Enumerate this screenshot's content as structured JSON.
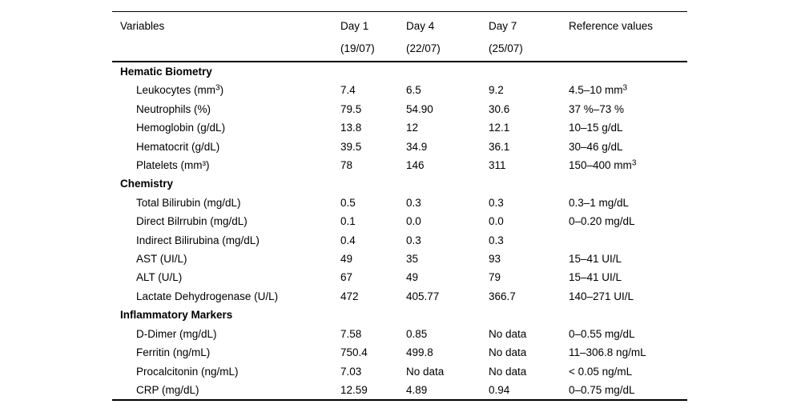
{
  "page": {
    "background": "#ffffff",
    "text_color": "#000000",
    "rule_color": "#000000"
  },
  "table": {
    "columns": [
      {
        "label": "Variables",
        "sub": ""
      },
      {
        "label": "Day 1",
        "sub": "(19/07)"
      },
      {
        "label": "Day 4",
        "sub": "(22/07)"
      },
      {
        "label": "Day 7",
        "sub": "(25/07)"
      },
      {
        "label": "Reference values",
        "sub": ""
      }
    ],
    "sections": [
      {
        "title": "Hematic Biometry",
        "rows": [
          {
            "variable": "Leukocytes (mm^3)",
            "day1": "7.4",
            "day4": "6.5",
            "day7": "9.2",
            "reference": "4.5–10 mm^3"
          },
          {
            "variable": "Neutrophils (%)",
            "day1": "79.5",
            "day4": "54.90",
            "day7": "30.6",
            "reference": "37 %–73 %"
          },
          {
            "variable": "Hemoglobin (g/dL)",
            "day1": "13.8",
            "day4": "12",
            "day7": "12.1",
            "reference": "10–15 g/dL"
          },
          {
            "variable": "Hematocrit (g/dL)",
            "day1": "39.5",
            "day4": "34.9",
            "day7": "36.1",
            "reference": "30–46 g/dL"
          },
          {
            "variable": "Platelets (mm³)",
            "day1": "78",
            "day4": "146",
            "day7": "311",
            "reference": "150–400 mm^3"
          }
        ]
      },
      {
        "title": "Chemistry",
        "rows": [
          {
            "variable": "Total Bilirubin (mg/dL)",
            "day1": "0.5",
            "day4": "0.3",
            "day7": "0.3",
            "reference": "0.3–1 mg/dL"
          },
          {
            "variable": "Direct Bilrrubin (mg/dL)",
            "day1": "0.1",
            "day4": "0.0",
            "day7": "0.0",
            "reference": "0–0.20 mg/dL"
          },
          {
            "variable": "Indirect Bilirubina (mg/dL)",
            "day1": "0.4",
            "day4": "0.3",
            "day7": "0.3",
            "reference": ""
          },
          {
            "variable": "AST (UI/L)",
            "day1": "49",
            "day4": "35",
            "day7": "93",
            "reference": "15–41 UI/L"
          },
          {
            "variable": "ALT (U/L)",
            "day1": "67",
            "day4": "49",
            "day7": "79",
            "reference": "15–41 UI/L"
          },
          {
            "variable": "Lactate Dehydrogenase (U/L)",
            "day1": "472",
            "day4": "405.77",
            "day7": "366.7",
            "reference": "140–271 UI/L"
          }
        ]
      },
      {
        "title": "Inflammatory Markers",
        "rows": [
          {
            "variable": "D-Dimer (mg/dL)",
            "day1": "7.58",
            "day4": "0.85",
            "day7": "No data",
            "reference": "0–0.55 mg/dL"
          },
          {
            "variable": "Ferritin (ng/mL)",
            "day1": "750.4",
            "day4": "499.8",
            "day7": "No data",
            "reference": "11–306.8 ng/mL"
          },
          {
            "variable": "Procalcitonin (ng/mL)",
            "day1": "7.03",
            "day4": "No data",
            "day7": "No data",
            "reference": "< 0.05 ng/mL"
          },
          {
            "variable": "CRP (mg/dL)",
            "day1": "12.59",
            "day4": "4.89",
            "day7": "0.94",
            "reference": "0–0.75 mg/dL"
          }
        ]
      }
    ]
  }
}
